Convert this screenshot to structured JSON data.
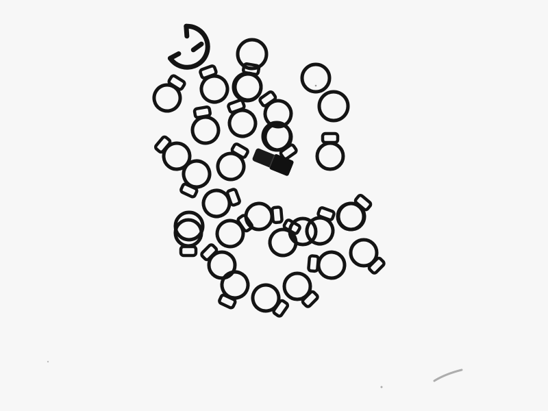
{
  "scene": {
    "background": "#f7f7f7",
    "part_color": "#141414",
    "parts": [
      {
        "kind": "e-clip",
        "icon": "e-clip-icon"
      },
      {
        "kind": "tab-ring",
        "icon": "tab-ring-icon"
      },
      {
        "kind": "tab-ring",
        "icon": "tab-ring-icon"
      },
      {
        "kind": "tab-ring",
        "icon": "tab-ring-icon"
      },
      {
        "kind": "tab-ring",
        "icon": "tab-ring-icon"
      },
      {
        "kind": "tab-ring",
        "icon": "tab-ring-icon"
      },
      {
        "kind": "tab-ring",
        "icon": "tab-ring-icon"
      },
      {
        "kind": "tab-ring",
        "icon": "tab-ring-icon"
      },
      {
        "kind": "tab-ring",
        "icon": "tab-ring-icon"
      },
      {
        "kind": "tab-ring",
        "icon": "tab-ring-icon"
      },
      {
        "kind": "tab-ring",
        "icon": "tab-ring-icon"
      },
      {
        "kind": "tab-ring",
        "icon": "tab-ring-icon"
      },
      {
        "kind": "tab-ring",
        "icon": "tab-ring-icon"
      },
      {
        "kind": "tab-ring",
        "icon": "tab-ring-icon"
      },
      {
        "kind": "tab-ring",
        "icon": "tab-ring-icon"
      },
      {
        "kind": "tab-ring",
        "icon": "tab-ring-icon"
      },
      {
        "kind": "tab-ring",
        "icon": "tab-ring-icon"
      },
      {
        "kind": "tab-ring",
        "icon": "tab-ring-icon"
      },
      {
        "kind": "tab-ring",
        "icon": "tab-ring-icon"
      },
      {
        "kind": "tab-ring",
        "icon": "tab-ring-icon"
      },
      {
        "kind": "tab-ring",
        "icon": "tab-ring-icon"
      },
      {
        "kind": "tab-ring",
        "icon": "tab-ring-icon"
      },
      {
        "kind": "tab-ring",
        "icon": "tab-ring-icon"
      },
      {
        "kind": "tab-ring",
        "icon": "tab-ring-icon"
      },
      {
        "kind": "tab-ring",
        "icon": "tab-ring-icon"
      },
      {
        "kind": "tab-ring",
        "icon": "tab-ring-icon"
      },
      {
        "kind": "tab-ring",
        "icon": "tab-ring-icon"
      },
      {
        "kind": "tab-ring",
        "icon": "tab-ring-icon"
      },
      {
        "kind": "tab-ring",
        "icon": "tab-ring-icon"
      },
      {
        "kind": "tab-ring",
        "icon": "tab-ring-icon"
      },
      {
        "kind": "tab-ring",
        "icon": "tab-ring-icon"
      },
      {
        "kind": "tab-ring",
        "icon": "tab-ring-icon"
      },
      {
        "kind": "tab-ring",
        "icon": "tab-ring-icon"
      },
      {
        "kind": "tab-ring",
        "icon": "tab-ring-icon"
      },
      {
        "kind": "plain-ring",
        "icon": "o-ring-icon"
      },
      {
        "kind": "plain-ring",
        "icon": "o-ring-icon"
      },
      {
        "kind": "cylinder-pin",
        "icon": "pin-icon"
      },
      {
        "kind": "debris",
        "icon": "dust-speck-icon"
      }
    ]
  }
}
